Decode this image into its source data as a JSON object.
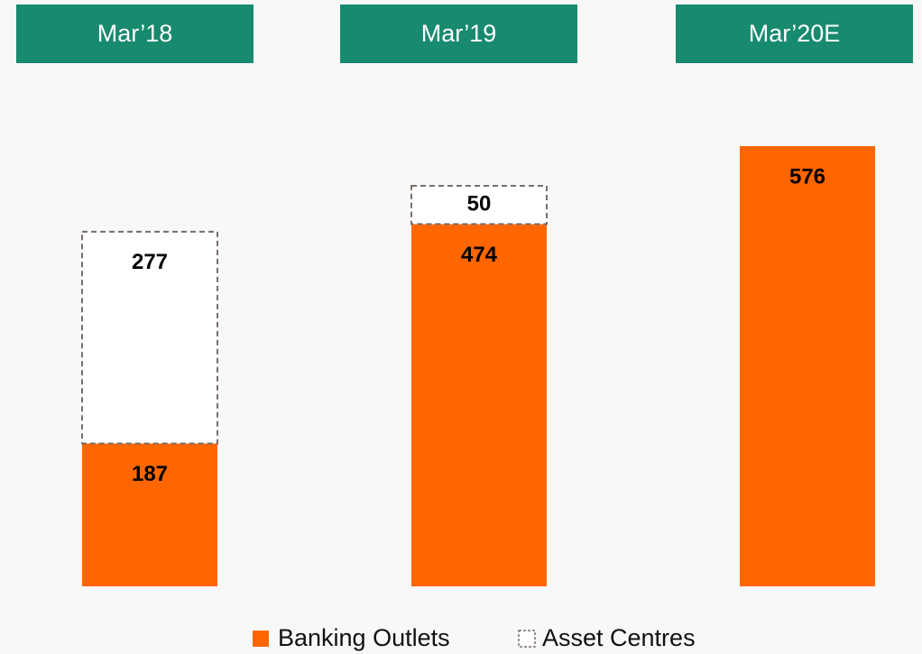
{
  "chart_data": {
    "type": "stacked_bar",
    "categories": [
      "Mar’18",
      "Mar’19",
      "Mar’20E"
    ],
    "header_color": "#178a6f",
    "series": [
      {
        "name": "Banking Outlets",
        "color": "#ff6600",
        "values": [
          187,
          474,
          576
        ]
      },
      {
        "name": "Asset Centres",
        "color": "#ffffff",
        "border_color": "#7a6e6a",
        "dashed": true,
        "values": [
          277,
          50,
          null
        ]
      }
    ],
    "legend": "bottom"
  }
}
